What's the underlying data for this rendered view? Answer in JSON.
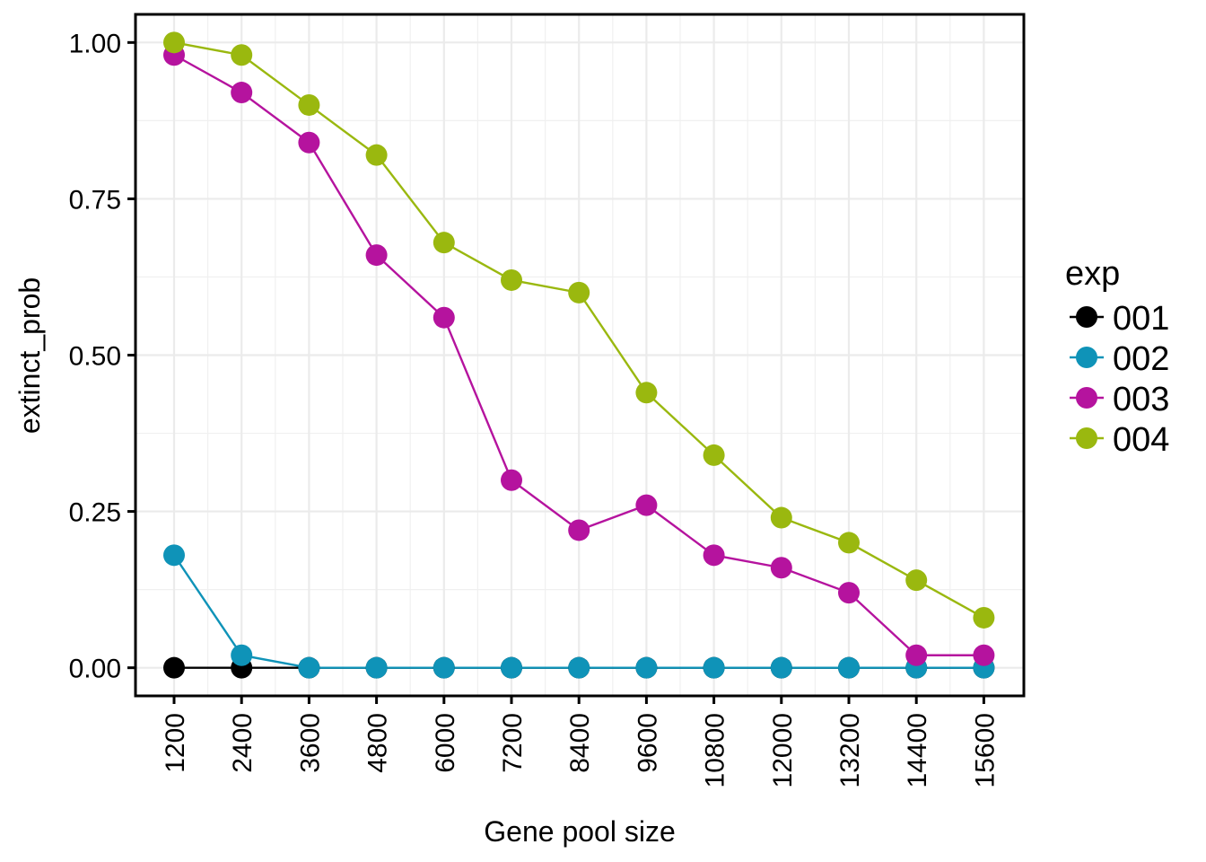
{
  "chart_data": {
    "type": "line",
    "xlabel": "Gene pool size",
    "ylabel": "extinct_prob",
    "categories": [
      "1200",
      "2400",
      "3600",
      "4800",
      "6000",
      "7200",
      "8400",
      "9600",
      "10800",
      "12000",
      "13200",
      "14400",
      "15600"
    ],
    "ylim": [
      -0.045,
      1.045
    ],
    "yticks": [
      0.0,
      0.25,
      0.5,
      0.75,
      1.0
    ],
    "ytick_labels": [
      "0.00",
      "0.25",
      "0.50",
      "0.75",
      "1.00"
    ],
    "grid": true,
    "legend": {
      "title": "exp",
      "placement": "right"
    },
    "series": [
      {
        "name": "001",
        "color": "#000000",
        "values": [
          0,
          0,
          0,
          0,
          0,
          0,
          0,
          0,
          0,
          0,
          0,
          0,
          0
        ]
      },
      {
        "name": "002",
        "color": "#0F93B8",
        "values": [
          0.18,
          0.02,
          0,
          0,
          0,
          0,
          0,
          0,
          0,
          0,
          0,
          0,
          0
        ]
      },
      {
        "name": "003",
        "color": "#B5139E",
        "values": [
          0.98,
          0.92,
          0.84,
          0.66,
          0.56,
          0.3,
          0.22,
          0.26,
          0.18,
          0.16,
          0.12,
          0.02,
          0.02
        ]
      },
      {
        "name": "004",
        "color": "#9AB80F",
        "values": [
          1.0,
          0.98,
          0.9,
          0.82,
          0.68,
          0.62,
          0.6,
          0.44,
          0.34,
          0.24,
          0.2,
          0.14,
          0.08
        ]
      }
    ]
  }
}
